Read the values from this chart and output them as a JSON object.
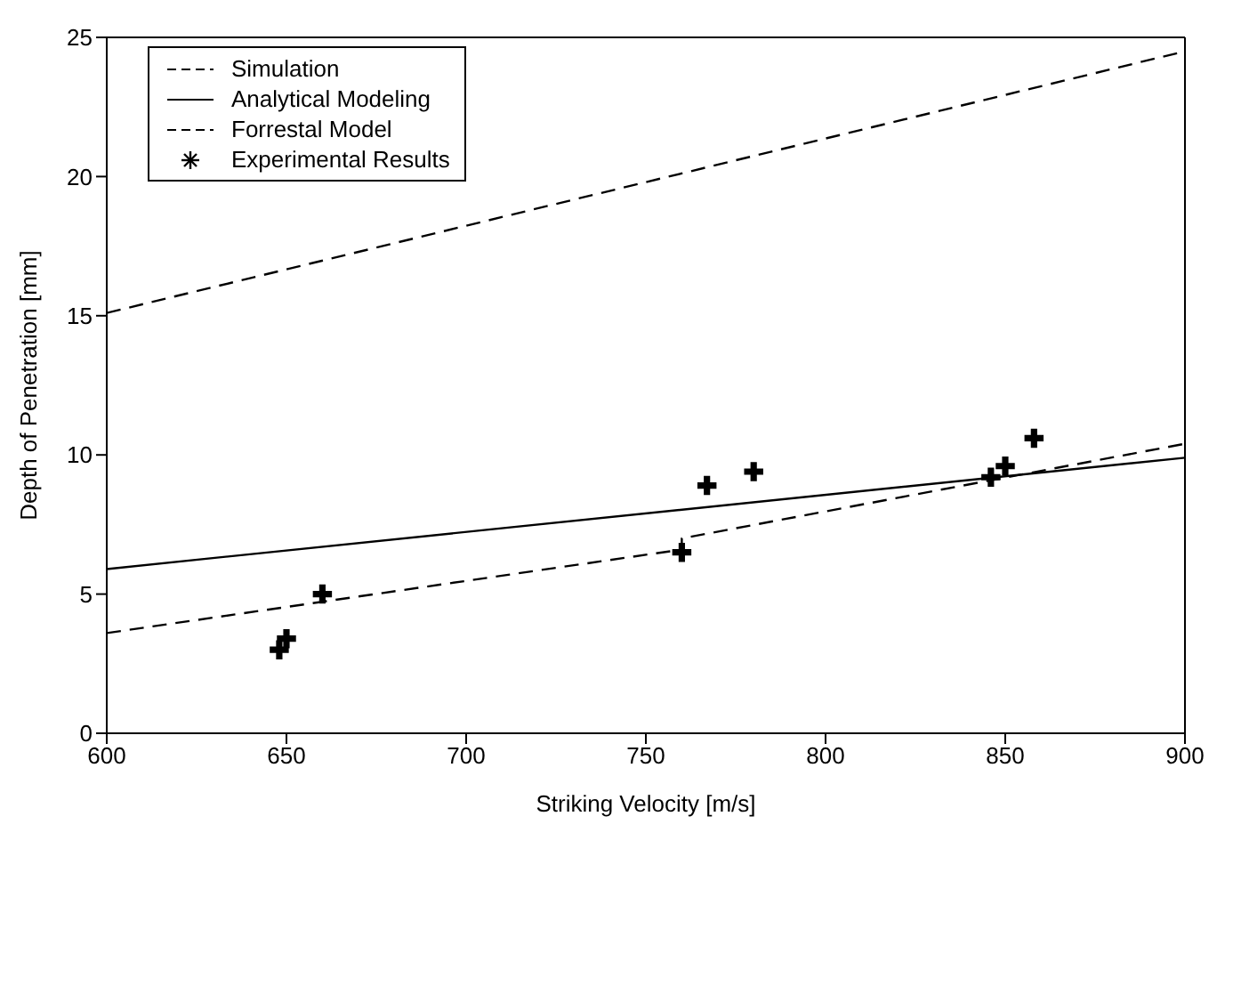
{
  "chart_data": {
    "type": "line",
    "xlabel": "Striking Velocity  [m/s]",
    "ylabel": "Depth of Penetration  [mm]",
    "xlim": [
      600,
      900
    ],
    "xticks": [
      600,
      650,
      700,
      750,
      800,
      850,
      900
    ],
    "ylim": [
      0,
      25
    ],
    "yticks": [
      0,
      5,
      10,
      15,
      20,
      25
    ],
    "grid": false,
    "legend": "top left",
    "marker": "none",
    "series": [
      {
        "name": "Simulation",
        "color": "#000000",
        "line_style": "dashed",
        "x": [
          600,
          760,
          760,
          900
        ],
        "values": [
          3.6,
          6.6,
          7.0,
          10.4
        ]
      },
      {
        "name": "Analytical Modeling",
        "color": "#000000",
        "line_style": "solid",
        "x": [
          600,
          900
        ],
        "values": [
          5.9,
          9.9
        ]
      },
      {
        "name": "Forrestal Model",
        "color": "#000000",
        "line_style": "dashed",
        "x": [
          600,
          900
        ],
        "values": [
          15.1,
          24.5
        ]
      },
      {
        "name": "Experimental Results",
        "type": "scatter",
        "marker": "cross",
        "color": "#000000",
        "x": [
          648,
          650,
          660,
          760,
          767,
          780,
          846,
          850,
          858
        ],
        "values": [
          3.0,
          3.4,
          5.0,
          6.5,
          8.9,
          9.4,
          9.2,
          9.6,
          10.6
        ]
      }
    ]
  }
}
